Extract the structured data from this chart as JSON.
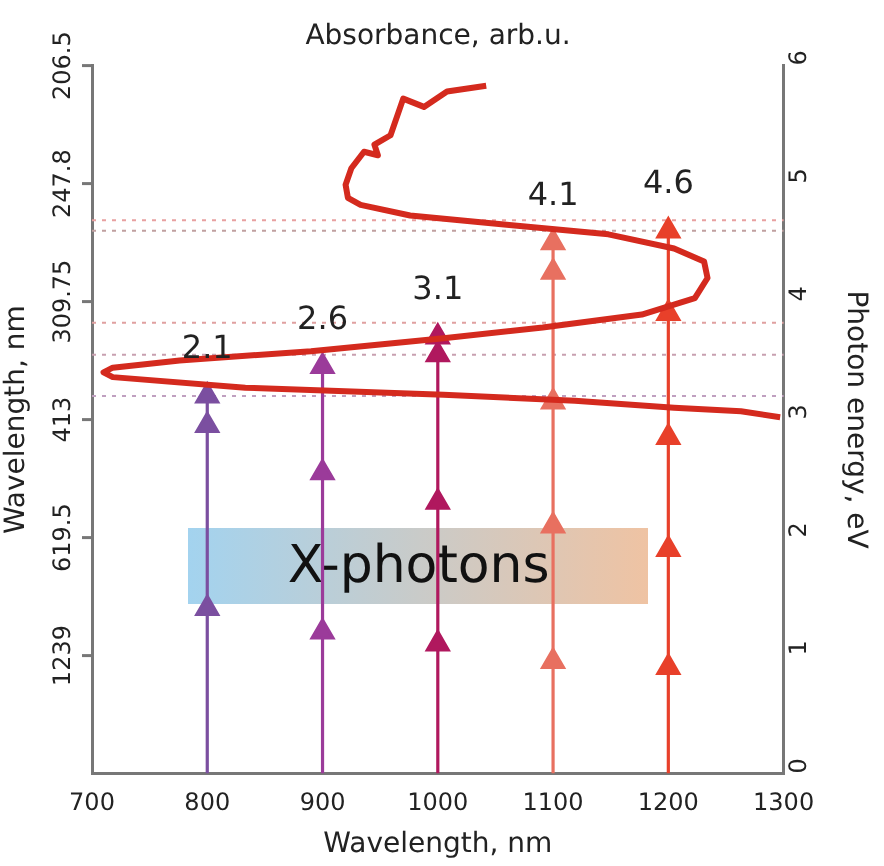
{
  "chart_data": {
    "type": "line",
    "title": "Absorbance, arb.u.",
    "xlabel": "Wavelength, nm",
    "ylabel": "Photon energy, eV",
    "y2label": "Wavelength, nm",
    "xlim": [
      700,
      1300
    ],
    "xticks": [
      700,
      800,
      900,
      1000,
      1100,
      1200,
      1300
    ],
    "ylim": [
      0,
      6
    ],
    "yticks": [
      0,
      1,
      2,
      3,
      4,
      5,
      6
    ],
    "grid": false,
    "legend": false,
    "series": [
      {
        "color": "#d42a1e",
        "marker": "none",
        "x": [
          1042,
          1008,
          988,
          970,
          959,
          945,
          948,
          936,
          925,
          920,
          922,
          933,
          976,
          1062,
          1148,
          1205,
          1231,
          1234,
          1223,
          1177,
          1091,
          1005,
          890,
          776,
          718,
          710,
          718,
          833,
          1005,
          1119,
          1205,
          1263,
          1297
        ],
        "values": [
          5.83,
          5.78,
          5.65,
          5.72,
          5.41,
          5.33,
          5.24,
          5.27,
          5.13,
          4.99,
          4.88,
          4.82,
          4.73,
          4.65,
          4.57,
          4.45,
          4.34,
          4.2,
          4.03,
          3.89,
          3.78,
          3.69,
          3.58,
          3.5,
          3.44,
          3.4,
          3.36,
          3.27,
          3.21,
          3.16,
          3.1,
          3.07,
          3.02
        ]
      },
      {
        "color": "#7b4fa0",
        "marker": "triangle",
        "x": [
          800,
          800,
          800,
          800
        ],
        "values": [
          0,
          1.4,
          2.95,
          3.2
        ]
      },
      {
        "color": "#9b3b9a",
        "marker": "triangle",
        "x": [
          900,
          900,
          900,
          900
        ],
        "values": [
          0,
          1.2,
          2.55,
          3.45
        ]
      },
      {
        "color": "#b0185e",
        "marker": "triangle",
        "x": [
          1000,
          1000,
          1000,
          1000,
          1000
        ],
        "values": [
          0,
          1.1,
          2.3,
          3.55,
          3.7
        ]
      },
      {
        "color": "#e87060",
        "marker": "triangle",
        "x": [
          1100,
          1100,
          1100,
          1100,
          1100,
          1100
        ],
        "values": [
          0,
          0.95,
          2.1,
          3.15,
          4.25,
          4.5
        ]
      },
      {
        "color": "#e8402a",
        "marker": "triangle",
        "x": [
          1200,
          1200,
          1200,
          1200,
          1200,
          1200
        ],
        "values": [
          0,
          0.9,
          1.9,
          2.85,
          3.9,
          4.6
        ]
      }
    ],
    "ref_lines": [
      {
        "axis": "y",
        "value": 4.69,
        "color": "#e8a0a0",
        "line_style": "dotted"
      },
      {
        "axis": "y",
        "value": 4.6,
        "color": "#c0a0a0",
        "line_style": "dotted"
      },
      {
        "axis": "y",
        "value": 3.82,
        "color": "#e0a0a0",
        "line_style": "dotted"
      },
      {
        "axis": "y",
        "value": 3.55,
        "color": "#c8a0b0",
        "line_style": "dotted"
      },
      {
        "axis": "y",
        "value": 3.2,
        "color": "#c0a0c0",
        "line_style": "dotted"
      }
    ],
    "annotations": [
      {
        "text": "2.1",
        "x": 800,
        "y": 3.2
      },
      {
        "text": "2.6",
        "x": 900,
        "y": 3.45
      },
      {
        "text": "3.1",
        "x": 1000,
        "y": 3.7
      },
      {
        "text": "4.1",
        "x": 1100,
        "y": 4.5
      },
      {
        "text": "4.6",
        "x": 1200,
        "y": 4.6
      },
      "X-photons",
      "206.5",
      "247.8",
      "309.75",
      "413",
      "619.5",
      "1239"
    ]
  }
}
